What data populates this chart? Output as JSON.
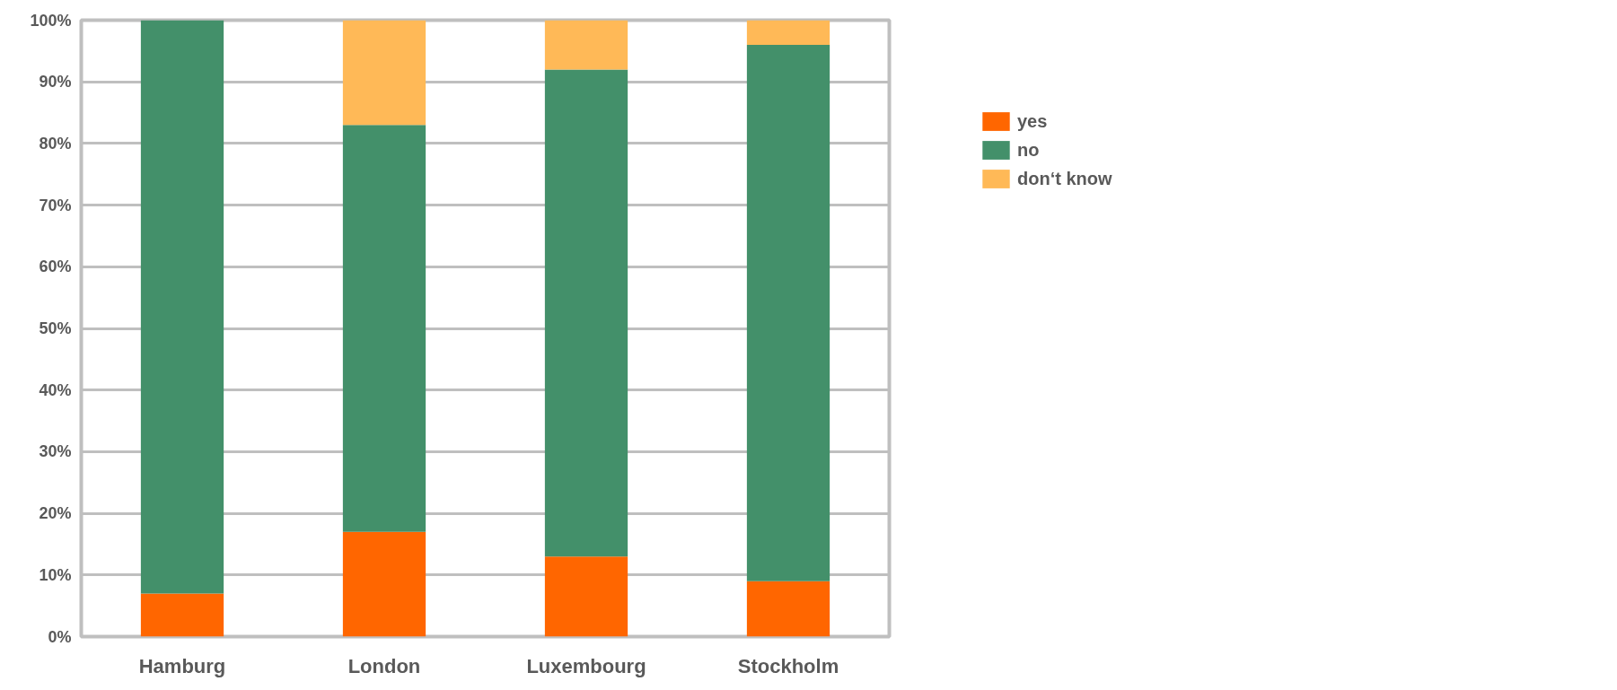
{
  "chart_data": {
    "type": "bar",
    "stacked": true,
    "categories": [
      "Hamburg",
      "London",
      "Luxembourg",
      "Stockholm"
    ],
    "series": [
      {
        "name": "yes",
        "color": "#ff6600",
        "values": [
          7,
          17,
          13,
          9
        ]
      },
      {
        "name": "no",
        "color": "#43906a",
        "values": [
          93,
          66,
          79,
          87
        ]
      },
      {
        "name": "don‘t know",
        "color": "#ffb957",
        "values": [
          0,
          17,
          8,
          4
        ]
      }
    ],
    "ylim": [
      0,
      100
    ],
    "yticks": [
      {
        "value": 0,
        "label": "0%"
      },
      {
        "value": 10,
        "label": "10%"
      },
      {
        "value": 20,
        "label": "20%"
      },
      {
        "value": 30,
        "label": "30%"
      },
      {
        "value": 40,
        "label": "40%"
      },
      {
        "value": 50,
        "label": "50%"
      },
      {
        "value": 60,
        "label": "60%"
      },
      {
        "value": 70,
        "label": "70%"
      },
      {
        "value": 80,
        "label": "80%"
      },
      {
        "value": 90,
        "label": "90%"
      },
      {
        "value": 100,
        "label": "100%"
      }
    ],
    "grid": "y",
    "legend": "right"
  }
}
